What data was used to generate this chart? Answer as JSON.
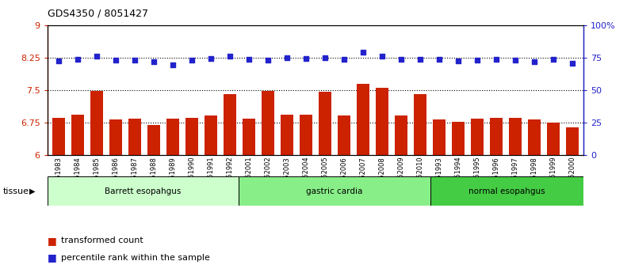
{
  "title": "GDS4350 / 8051427",
  "samples": [
    "GSM851983",
    "GSM851984",
    "GSM851985",
    "GSM851986",
    "GSM851987",
    "GSM851988",
    "GSM851989",
    "GSM851990",
    "GSM851991",
    "GSM851992",
    "GSM852001",
    "GSM852002",
    "GSM852003",
    "GSM852004",
    "GSM852005",
    "GSM852006",
    "GSM852007",
    "GSM852008",
    "GSM852009",
    "GSM852010",
    "GSM851993",
    "GSM851994",
    "GSM851995",
    "GSM851996",
    "GSM851997",
    "GSM851998",
    "GSM851999",
    "GSM852000"
  ],
  "bar_values": [
    6.87,
    6.93,
    7.48,
    6.82,
    6.84,
    6.71,
    6.85,
    6.87,
    6.92,
    7.42,
    6.85,
    7.48,
    6.93,
    6.93,
    7.47,
    6.92,
    7.65,
    7.55,
    6.92,
    7.42,
    6.82,
    6.78,
    6.85,
    6.87,
    6.87,
    6.82,
    6.75,
    6.65
  ],
  "dot_values": [
    8.18,
    8.21,
    8.28,
    8.19,
    8.19,
    8.16,
    8.08,
    8.19,
    8.23,
    8.28,
    8.22,
    8.19,
    8.25,
    8.23,
    8.25,
    8.21,
    8.37,
    8.29,
    8.21,
    8.21,
    8.22,
    8.17,
    8.19,
    8.21,
    8.19,
    8.16,
    8.22,
    8.12
  ],
  "bar_color": "#cc2200",
  "dot_color": "#2222cc",
  "ylim_left": [
    6.0,
    9.0
  ],
  "ylim_right": [
    0,
    100
  ],
  "yticks_left": [
    6.0,
    6.75,
    7.5,
    8.25,
    9.0
  ],
  "ytick_labels_left": [
    "6",
    "6.75",
    "7.5",
    "8.25",
    "9"
  ],
  "yticks_right": [
    0,
    25,
    50,
    75,
    100
  ],
  "ytick_labels_right": [
    "0",
    "25",
    "50",
    "75",
    "100%"
  ],
  "hlines": [
    6.75,
    7.5,
    8.25
  ],
  "groups": [
    {
      "label": "Barrett esopahgus",
      "start": 0,
      "end": 10,
      "color": "#ccffcc"
    },
    {
      "label": "gastric cardia",
      "start": 10,
      "end": 20,
      "color": "#88ee88"
    },
    {
      "label": "normal esopahgus",
      "start": 20,
      "end": 28,
      "color": "#44cc44"
    }
  ],
  "tissue_label": "tissue",
  "legend_bar_label": "transformed count",
  "legend_dot_label": "percentile rank within the sample",
  "background_color": "#ffffff"
}
